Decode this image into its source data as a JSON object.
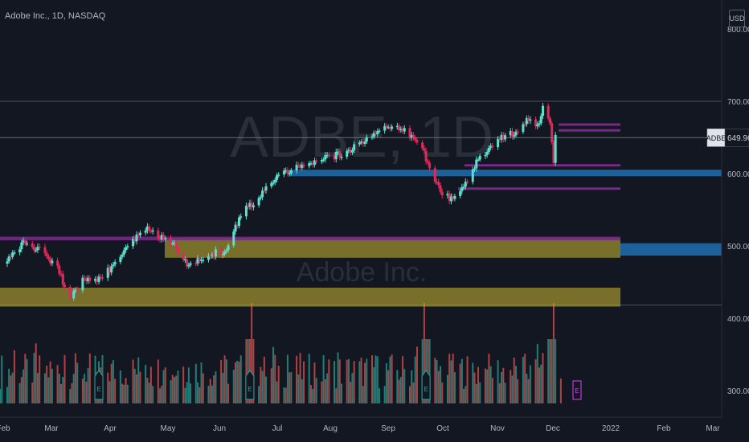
{
  "header": {
    "title": "Adobe Inc., 1D, NASDAQ",
    "currency_button": "USD"
  },
  "watermark": {
    "symbol": "ADBE, 1D",
    "name": "Adobe Inc."
  },
  "price_scale": {
    "ticks": [
      "800.00",
      "700.00",
      "600.00",
      "500.00",
      "400.00",
      "300.00"
    ],
    "last_symbol": "ADBE",
    "last_price": "649.96"
  },
  "time_axis": {
    "labels": [
      "Feb",
      "Mar",
      "Apr",
      "May",
      "Jun",
      "Jul",
      "Aug",
      "Sep",
      "Oct",
      "Nov",
      "Dec",
      "2022",
      "Feb",
      "Mar"
    ]
  },
  "event_markers": {
    "earnings_letter": "E"
  },
  "colors": {
    "background": "#131722",
    "up": "#26a69a",
    "down": "#ef5350",
    "up_candle": "#5be0cf",
    "down_candle": "#e0285a",
    "zone_yellow": "#b7a631",
    "zone_purple": "#7b2a8b",
    "zone_blue": "#2962ff",
    "line_blue": "#1e6fb0"
  },
  "chart_data": {
    "type": "candlestick",
    "symbol": "ADBE",
    "interval": "1D",
    "exchange": "NASDAQ",
    "ylim": [
      275,
      840
    ],
    "last_price": 649.96,
    "price_path": [
      {
        "date": "2021-02-01",
        "close": 485
      },
      {
        "date": "2021-02-10",
        "close": 505
      },
      {
        "date": "2021-02-19",
        "close": 495
      },
      {
        "date": "2021-03-01",
        "close": 470
      },
      {
        "date": "2021-03-08",
        "close": 430
      },
      {
        "date": "2021-03-15",
        "close": 455
      },
      {
        "date": "2021-03-22",
        "close": 455
      },
      {
        "date": "2021-03-31",
        "close": 470
      },
      {
        "date": "2021-04-09",
        "close": 500
      },
      {
        "date": "2021-04-19",
        "close": 525
      },
      {
        "date": "2021-04-26",
        "close": 515
      },
      {
        "date": "2021-05-03",
        "close": 510
      },
      {
        "date": "2021-05-12",
        "close": 475
      },
      {
        "date": "2021-05-24",
        "close": 490
      },
      {
        "date": "2021-06-03",
        "close": 495
      },
      {
        "date": "2021-06-11",
        "close": 545
      },
      {
        "date": "2021-06-22",
        "close": 570
      },
      {
        "date": "2021-07-02",
        "close": 600
      },
      {
        "date": "2021-07-14",
        "close": 610
      },
      {
        "date": "2021-07-26",
        "close": 620
      },
      {
        "date": "2021-08-09",
        "close": 630
      },
      {
        "date": "2021-08-20",
        "close": 650
      },
      {
        "date": "2021-09-01",
        "close": 665
      },
      {
        "date": "2021-09-10",
        "close": 660
      },
      {
        "date": "2021-09-20",
        "close": 635
      },
      {
        "date": "2021-09-24",
        "close": 610
      },
      {
        "date": "2021-09-29",
        "close": 580
      },
      {
        "date": "2021-10-06",
        "close": 565
      },
      {
        "date": "2021-10-13",
        "close": 580
      },
      {
        "date": "2021-10-22",
        "close": 625
      },
      {
        "date": "2021-11-03",
        "close": 650
      },
      {
        "date": "2021-11-12",
        "close": 660
      },
      {
        "date": "2021-11-19",
        "close": 680
      },
      {
        "date": "2021-11-23",
        "close": 665
      },
      {
        "date": "2021-11-26",
        "close": 690
      },
      {
        "date": "2021-11-30",
        "close": 670
      },
      {
        "date": "2021-12-02",
        "close": 615
      },
      {
        "date": "2021-12-03",
        "close": 650
      }
    ],
    "zones": [
      {
        "kind": "yellow",
        "low": 485,
        "high": 512
      },
      {
        "kind": "yellow",
        "low": 418,
        "high": 444
      },
      {
        "kind": "purple",
        "low": 509,
        "high": 514
      },
      {
        "kind": "blue",
        "low": 597,
        "high": 606
      },
      {
        "kind": "blue",
        "low": 488,
        "high": 505
      }
    ],
    "level_lines": [
      700,
      650,
      420
    ],
    "purple_levels": [
      668,
      660,
      612,
      580
    ],
    "volume": {
      "earnings_spikes": [
        "2021-06-17",
        "2021-09-21",
        "2021-12-02"
      ]
    },
    "grid": false,
    "legend": "none"
  }
}
